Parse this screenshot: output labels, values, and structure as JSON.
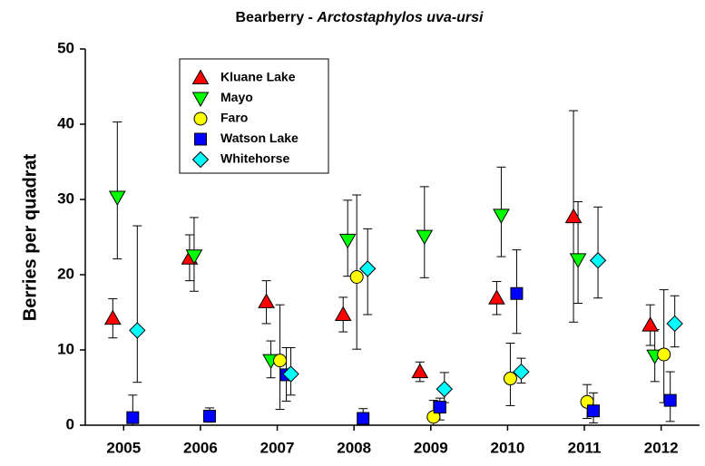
{
  "chart_data": {
    "type": "scatter-errorbar",
    "title": "Bearberry -",
    "title_italic": "Arctostaphylos uva-ursi",
    "y_label": "Berries per quadrat",
    "categories": [
      "2005",
      "2006",
      "2007",
      "2008",
      "2009",
      "2010",
      "2011",
      "2012"
    ],
    "ylim": [
      0,
      50
    ],
    "yticks": [
      0,
      10,
      20,
      30,
      40,
      50
    ],
    "legend": "upper left",
    "series": [
      {
        "name": "Kluane Lake",
        "color": "#ff0000",
        "marker": "triangle-up",
        "values": [
          14.2,
          22.2,
          16.4,
          14.7,
          7.1,
          16.9,
          27.7,
          13.3
        ],
        "error_minus": [
          2.6,
          3.0,
          2.9,
          2.3,
          1.3,
          2.2,
          14.0,
          2.7
        ],
        "error_plus": [
          2.6,
          3.1,
          2.8,
          2.3,
          1.3,
          2.2,
          14.1,
          2.7
        ]
      },
      {
        "name": "Mayo",
        "color": "#00ff00",
        "marker": "triangle-down",
        "values": [
          30.3,
          22.5,
          8.6,
          24.6,
          25.1,
          27.9,
          22.0,
          9.2
        ],
        "error_minus": [
          8.2,
          4.7,
          2.3,
          4.8,
          5.5,
          5.5,
          5.8,
          3.4
        ],
        "error_plus": [
          10.0,
          5.1,
          2.6,
          5.3,
          6.6,
          6.4,
          7.7,
          3.5
        ]
      },
      {
        "name": "Faro",
        "color": "#ffff00",
        "marker": "circle",
        "values": [
          null,
          null,
          8.6,
          19.7,
          1.1,
          6.2,
          3.1,
          9.4
        ],
        "error_minus": [
          null,
          null,
          6.5,
          9.6,
          1.1,
          3.6,
          2.2,
          6.4
        ],
        "error_plus": [
          null,
          null,
          7.4,
          10.9,
          2.2,
          4.7,
          2.3,
          8.6
        ]
      },
      {
        "name": "Watson Lake",
        "color": "#0000ff",
        "marker": "square",
        "values": [
          1.0,
          1.2,
          6.7,
          0.9,
          2.4,
          17.5,
          1.9,
          3.3
        ],
        "error_minus": [
          1.0,
          0.8,
          3.5,
          0.6,
          1.7,
          5.3,
          1.6,
          2.8
        ],
        "error_plus": [
          3.0,
          1.1,
          3.6,
          1.3,
          1.2,
          5.8,
          2.4,
          3.8
        ]
      },
      {
        "name": "Whitehorse",
        "color": "#00ffff",
        "marker": "diamond",
        "values": [
          12.6,
          null,
          6.8,
          20.8,
          4.8,
          7.1,
          21.9,
          13.5
        ],
        "error_minus": [
          6.9,
          null,
          2.8,
          6.1,
          1.8,
          1.5,
          5.0,
          3.1
        ],
        "error_plus": [
          13.9,
          null,
          3.5,
          5.3,
          2.2,
          1.8,
          7.1,
          3.7
        ]
      }
    ]
  }
}
